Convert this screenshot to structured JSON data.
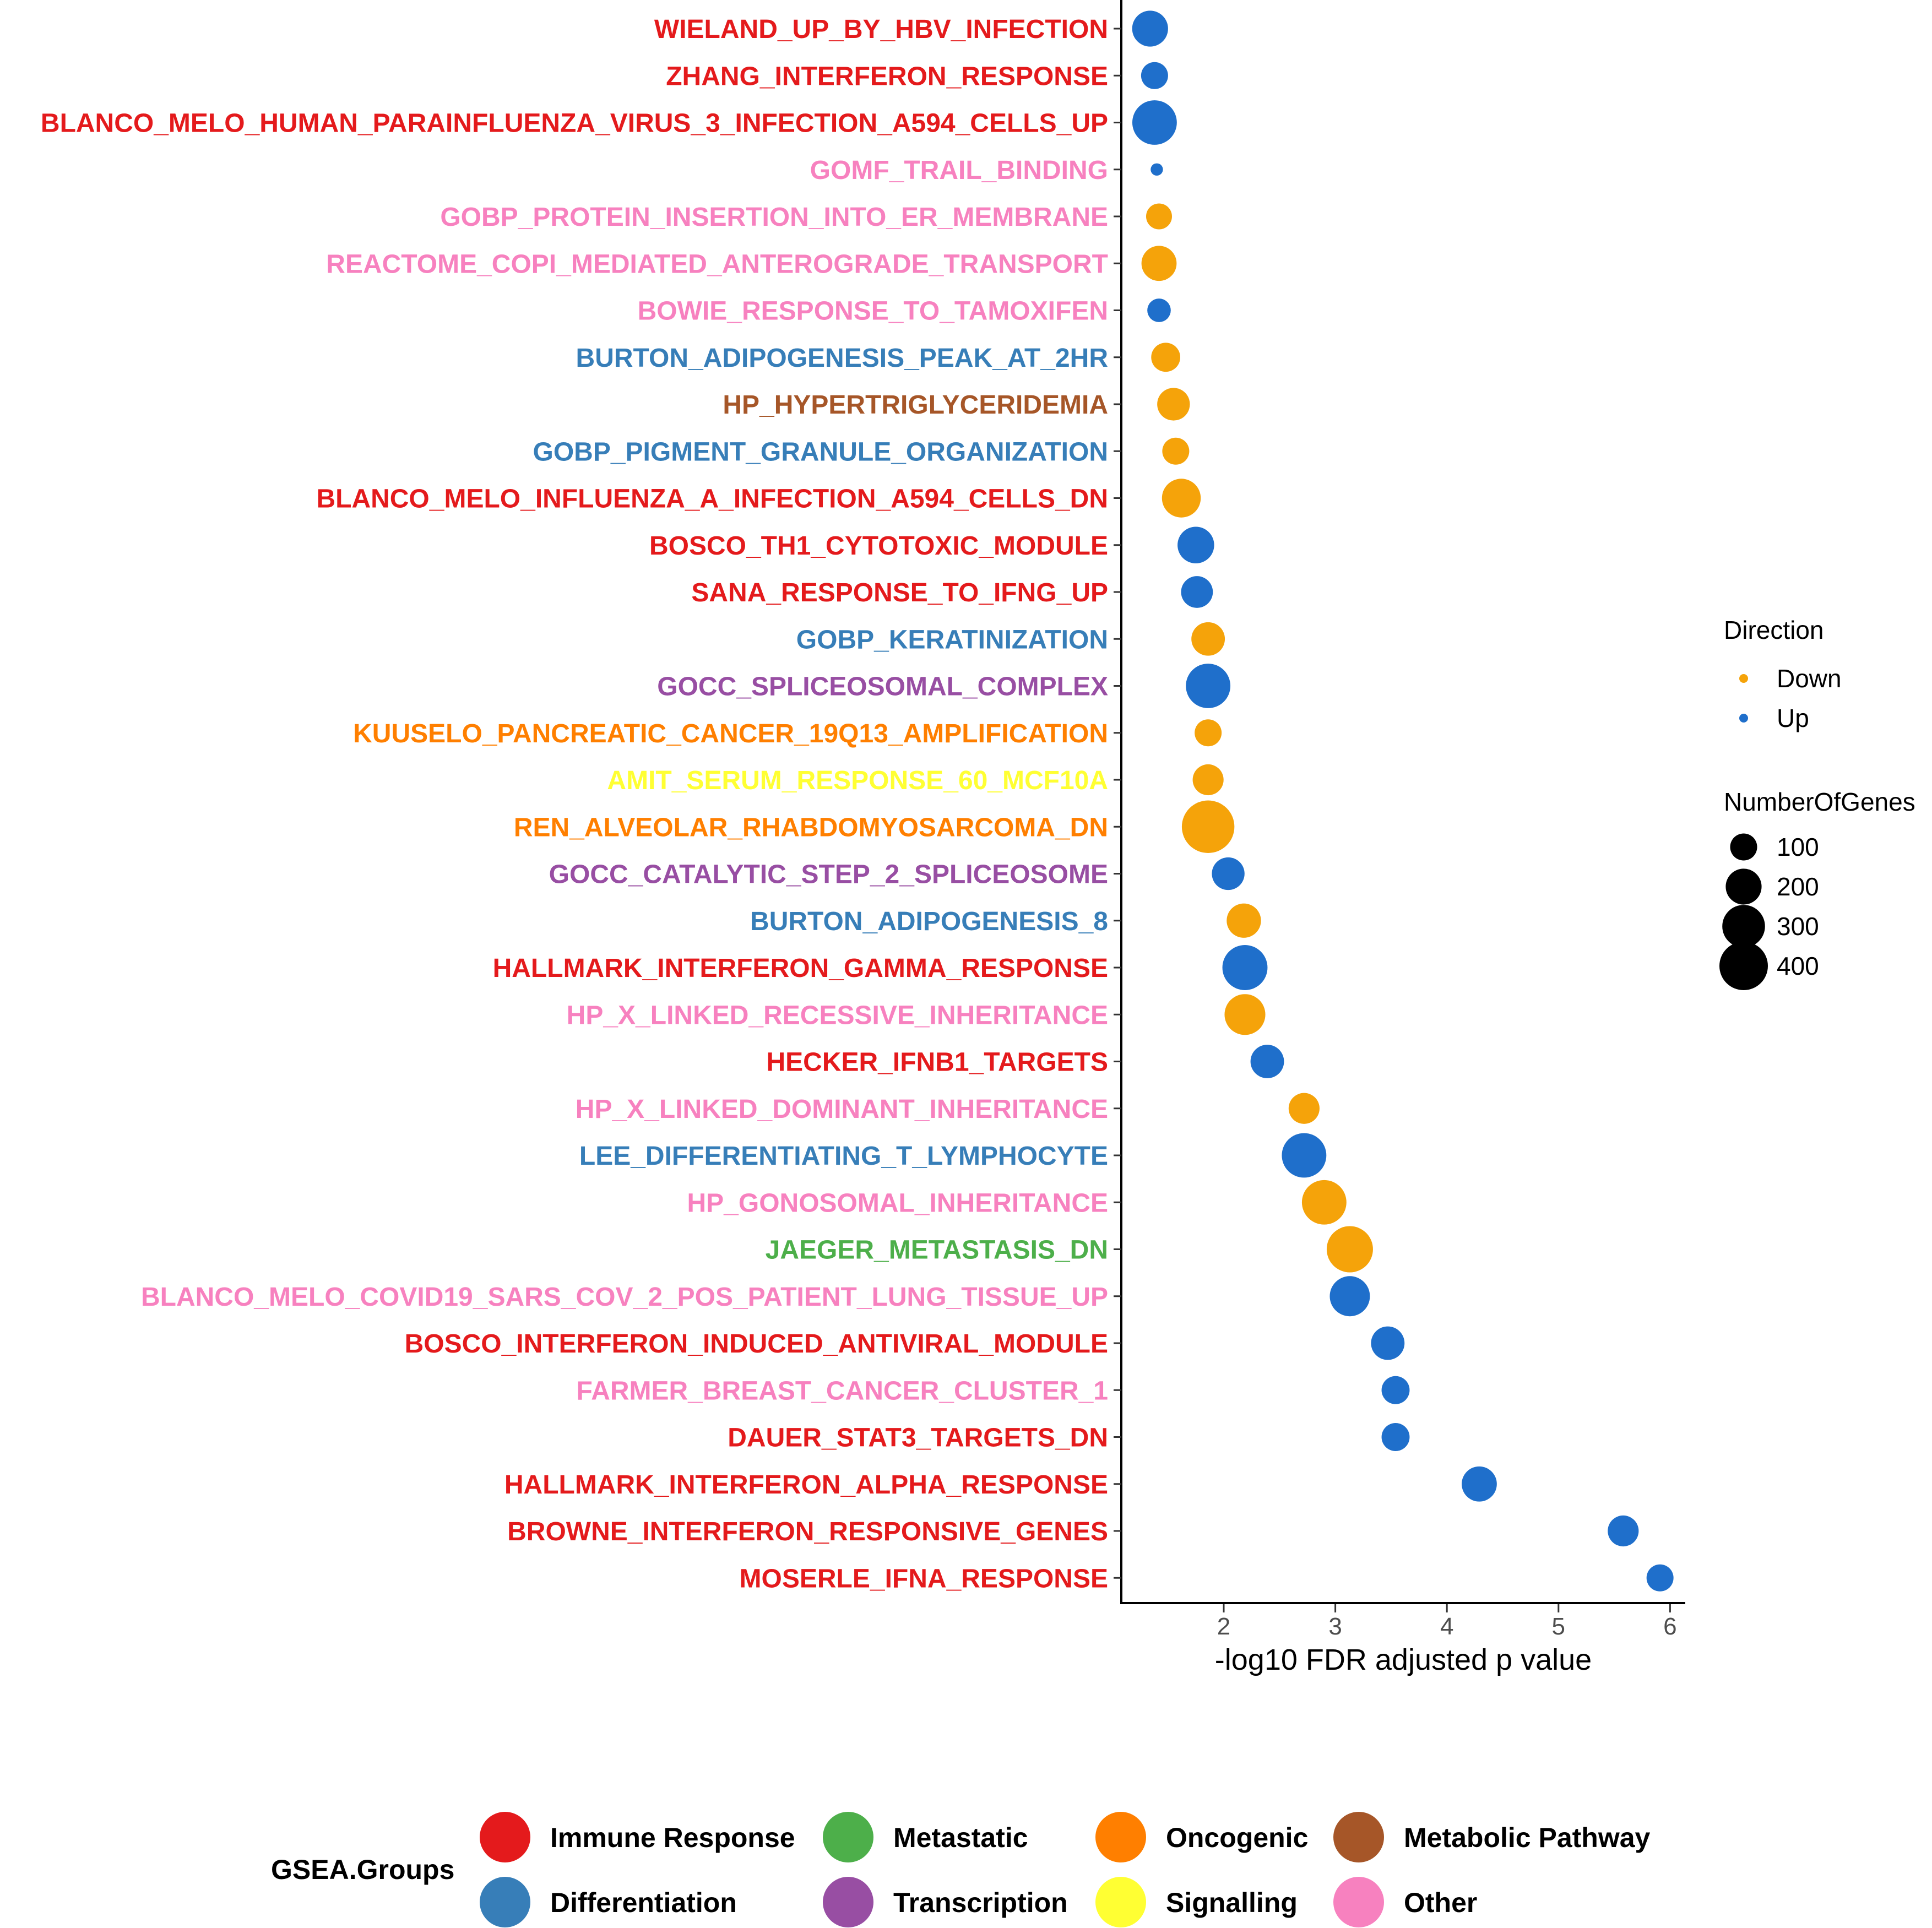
{
  "chart_data": {
    "type": "scatter",
    "xlabel": "-log10 FDR adjusted p value",
    "ylabel": "",
    "xlim": [
      1.1,
      6.15
    ],
    "xticks": [
      2,
      3,
      4,
      5,
      6
    ],
    "grid": false,
    "colors": {
      "Down": "#f5a30a",
      "Up": "#1f6fcb",
      "Immune Response": "#e41a1c",
      "Differentiation": "#377eb8",
      "Metastatic": "#4daf4a",
      "Transcription": "#984ea3",
      "Oncogenic": "#ff7f00",
      "Signalling": "#ffff33",
      "Metabolic Pathway": "#a65628",
      "Other": "#f781bf"
    },
    "points": [
      {
        "label": "WIELAND_UP_BY_HBV_INFECTION",
        "x": 1.34,
        "direction": "Up",
        "genes": 200,
        "group": "Immune Response"
      },
      {
        "label": "ZHANG_INTERFERON_RESPONSE",
        "x": 1.38,
        "direction": "Up",
        "genes": 100,
        "group": "Immune Response"
      },
      {
        "label": "BLANCO_MELO_HUMAN_PARAINFLUENZA_VIRUS_3_INFECTION_A594_CELLS_UP",
        "x": 1.38,
        "direction": "Up",
        "genes": 330,
        "group": "Immune Response"
      },
      {
        "label": "GOMF_TRAIL_BINDING",
        "x": 1.4,
        "direction": "Up",
        "genes": 10,
        "group": "Other"
      },
      {
        "label": "GOBP_PROTEIN_INSERTION_INTO_ER_MEMBRANE",
        "x": 1.42,
        "direction": "Down",
        "genes": 90,
        "group": "Other"
      },
      {
        "label": "REACTOME_COPI_MEDIATED_ANTEROGRADE_TRANSPORT",
        "x": 1.42,
        "direction": "Down",
        "genes": 190,
        "group": "Other"
      },
      {
        "label": "BOWIE_RESPONSE_TO_TAMOXIFEN",
        "x": 1.42,
        "direction": "Up",
        "genes": 70,
        "group": "Other"
      },
      {
        "label": "BURTON_ADIPOGENESIS_PEAK_AT_2HR",
        "x": 1.48,
        "direction": "Down",
        "genes": 120,
        "group": "Differentiation"
      },
      {
        "label": "HP_HYPERTRIGLYCERIDEMIA",
        "x": 1.55,
        "direction": "Down",
        "genes": 160,
        "group": "Metabolic Pathway"
      },
      {
        "label": "GOBP_PIGMENT_GRANULE_ORGANIZATION",
        "x": 1.57,
        "direction": "Down",
        "genes": 100,
        "group": "Differentiation"
      },
      {
        "label": "BLANCO_MELO_INFLUENZA_A_INFECTION_A594_CELLS_DN",
        "x": 1.62,
        "direction": "Down",
        "genes": 240,
        "group": "Immune Response"
      },
      {
        "label": "BOSCO_TH1_CYTOTOXIC_MODULE",
        "x": 1.75,
        "direction": "Up",
        "genes": 210,
        "group": "Immune Response"
      },
      {
        "label": "SANA_RESPONSE_TO_IFNG_UP",
        "x": 1.76,
        "direction": "Up",
        "genes": 150,
        "group": "Immune Response"
      },
      {
        "label": "GOBP_KERATINIZATION",
        "x": 1.86,
        "direction": "Down",
        "genes": 170,
        "group": "Differentiation"
      },
      {
        "label": "GOCC_SPLICEOSOMAL_COMPLEX",
        "x": 1.86,
        "direction": "Up",
        "genes": 330,
        "group": "Transcription"
      },
      {
        "label": "KUUSELO_PANCREATIC_CANCER_19Q13_AMPLIFICATION",
        "x": 1.86,
        "direction": "Down",
        "genes": 100,
        "group": "Oncogenic"
      },
      {
        "label": "AMIT_SERUM_RESPONSE_60_MCF10A",
        "x": 1.86,
        "direction": "Down",
        "genes": 140,
        "group": "Signalling"
      },
      {
        "label": "REN_ALVEOLAR_RHABDOMYOSARCOMA_DN",
        "x": 1.86,
        "direction": "Down",
        "genes": 480,
        "group": "Oncogenic"
      },
      {
        "label": "GOCC_CATALYTIC_STEP_2_SPLICEOSOME",
        "x": 2.04,
        "direction": "Up",
        "genes": 160,
        "group": "Transcription"
      },
      {
        "label": "BURTON_ADIPOGENESIS_8",
        "x": 2.18,
        "direction": "Down",
        "genes": 180,
        "group": "Differentiation"
      },
      {
        "label": "HALLMARK_INTERFERON_GAMMA_RESPONSE",
        "x": 2.19,
        "direction": "Up",
        "genes": 340,
        "group": "Immune Response"
      },
      {
        "label": "HP_X_LINKED_RECESSIVE_INHERITANCE",
        "x": 2.19,
        "direction": "Down",
        "genes": 270,
        "group": "Other"
      },
      {
        "label": "HECKER_IFNB1_TARGETS",
        "x": 2.39,
        "direction": "Up",
        "genes": 170,
        "group": "Immune Response"
      },
      {
        "label": "HP_X_LINKED_DOMINANT_INHERITANCE",
        "x": 2.72,
        "direction": "Down",
        "genes": 140,
        "group": "Other"
      },
      {
        "label": "LEE_DIFFERENTIATING_T_LYMPHOCYTE",
        "x": 2.72,
        "direction": "Up",
        "genes": 330,
        "group": "Differentiation"
      },
      {
        "label": "HP_GONOSOMAL_INHERITANCE",
        "x": 2.9,
        "direction": "Down",
        "genes": 330,
        "group": "Other"
      },
      {
        "label": "JAEGER_METASTASIS_DN",
        "x": 3.13,
        "direction": "Down",
        "genes": 360,
        "group": "Metastatic"
      },
      {
        "label": "BLANCO_MELO_COVID19_SARS_COV_2_POS_PATIENT_LUNG_TISSUE_UP",
        "x": 3.13,
        "direction": "Up",
        "genes": 260,
        "group": "Other"
      },
      {
        "label": "BOSCO_INTERFERON_INDUCED_ANTIVIRAL_MODULE",
        "x": 3.47,
        "direction": "Up",
        "genes": 170,
        "group": "Immune Response"
      },
      {
        "label": "FARMER_BREAST_CANCER_CLUSTER_1",
        "x": 3.54,
        "direction": "Up",
        "genes": 110,
        "group": "Other"
      },
      {
        "label": "DAUER_STAT3_TARGETS_DN",
        "x": 3.54,
        "direction": "Up",
        "genes": 110,
        "group": "Immune Response"
      },
      {
        "label": "HALLMARK_INTERFERON_ALPHA_RESPONSE",
        "x": 4.29,
        "direction": "Up",
        "genes": 190,
        "group": "Immune Response"
      },
      {
        "label": "BROWNE_INTERFERON_RESPONSIVE_GENES",
        "x": 5.58,
        "direction": "Up",
        "genes": 140,
        "group": "Immune Response"
      },
      {
        "label": "MOSERLE_IFNA_RESPONSE",
        "x": 5.91,
        "direction": "Up",
        "genes": 100,
        "group": "Immune Response"
      }
    ],
    "legend_direction": {
      "title": "Direction",
      "entries": [
        "Down",
        "Up"
      ]
    },
    "legend_size": {
      "title": "NumberOfGenes",
      "entries": [
        {
          "label": "100",
          "value": 100
        },
        {
          "label": "200",
          "value": 200
        },
        {
          "label": "300",
          "value": 300
        },
        {
          "label": "400",
          "value": 400
        }
      ]
    },
    "legend_groups": {
      "title": "GSEA.Groups",
      "entries": [
        "Immune Response",
        "Metastatic",
        "Oncogenic",
        "Metabolic Pathway",
        "Differentiation",
        "Transcription",
        "Signalling",
        "Other"
      ]
    }
  }
}
